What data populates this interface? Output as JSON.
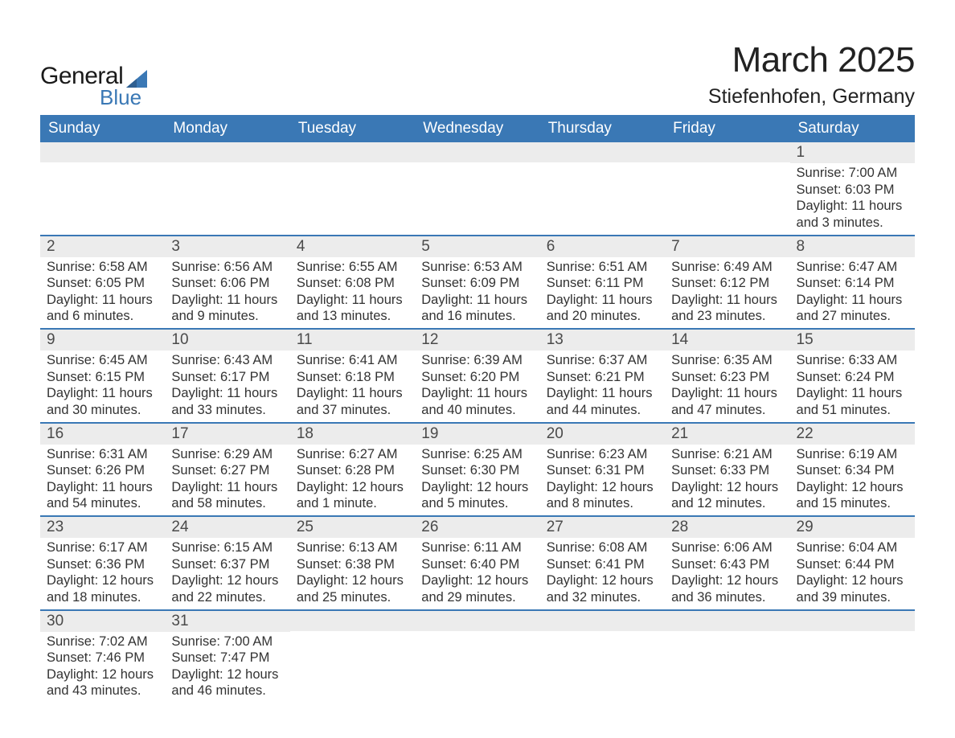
{
  "brand": {
    "word1": "General",
    "word2": "Blue",
    "text_color": "#1a1a1a",
    "accent_color": "#3a78b5"
  },
  "title": {
    "month_year": "March 2025",
    "location": "Stiefenhofen, Germany",
    "title_fontsize": 44,
    "location_fontsize": 25,
    "text_color": "#222222"
  },
  "calendar": {
    "header_bg": "#3a78b5",
    "header_text_color": "#ffffff",
    "row_divider_color": "#3a78b5",
    "daynum_bg": "#ececec",
    "body_text_color": "#333333",
    "body_fontsize": 16.5,
    "daynum_fontsize": 19,
    "days": [
      "Sunday",
      "Monday",
      "Tuesday",
      "Wednesday",
      "Thursday",
      "Friday",
      "Saturday"
    ],
    "weeks": [
      [
        null,
        null,
        null,
        null,
        null,
        null,
        {
          "n": "1",
          "sunrise": "Sunrise: 7:00 AM",
          "sunset": "Sunset: 6:03 PM",
          "daylight": "Daylight: 11 hours and 3 minutes."
        }
      ],
      [
        {
          "n": "2",
          "sunrise": "Sunrise: 6:58 AM",
          "sunset": "Sunset: 6:05 PM",
          "daylight": "Daylight: 11 hours and 6 minutes."
        },
        {
          "n": "3",
          "sunrise": "Sunrise: 6:56 AM",
          "sunset": "Sunset: 6:06 PM",
          "daylight": "Daylight: 11 hours and 9 minutes."
        },
        {
          "n": "4",
          "sunrise": "Sunrise: 6:55 AM",
          "sunset": "Sunset: 6:08 PM",
          "daylight": "Daylight: 11 hours and 13 minutes."
        },
        {
          "n": "5",
          "sunrise": "Sunrise: 6:53 AM",
          "sunset": "Sunset: 6:09 PM",
          "daylight": "Daylight: 11 hours and 16 minutes."
        },
        {
          "n": "6",
          "sunrise": "Sunrise: 6:51 AM",
          "sunset": "Sunset: 6:11 PM",
          "daylight": "Daylight: 11 hours and 20 minutes."
        },
        {
          "n": "7",
          "sunrise": "Sunrise: 6:49 AM",
          "sunset": "Sunset: 6:12 PM",
          "daylight": "Daylight: 11 hours and 23 minutes."
        },
        {
          "n": "8",
          "sunrise": "Sunrise: 6:47 AM",
          "sunset": "Sunset: 6:14 PM",
          "daylight": "Daylight: 11 hours and 27 minutes."
        }
      ],
      [
        {
          "n": "9",
          "sunrise": "Sunrise: 6:45 AM",
          "sunset": "Sunset: 6:15 PM",
          "daylight": "Daylight: 11 hours and 30 minutes."
        },
        {
          "n": "10",
          "sunrise": "Sunrise: 6:43 AM",
          "sunset": "Sunset: 6:17 PM",
          "daylight": "Daylight: 11 hours and 33 minutes."
        },
        {
          "n": "11",
          "sunrise": "Sunrise: 6:41 AM",
          "sunset": "Sunset: 6:18 PM",
          "daylight": "Daylight: 11 hours and 37 minutes."
        },
        {
          "n": "12",
          "sunrise": "Sunrise: 6:39 AM",
          "sunset": "Sunset: 6:20 PM",
          "daylight": "Daylight: 11 hours and 40 minutes."
        },
        {
          "n": "13",
          "sunrise": "Sunrise: 6:37 AM",
          "sunset": "Sunset: 6:21 PM",
          "daylight": "Daylight: 11 hours and 44 minutes."
        },
        {
          "n": "14",
          "sunrise": "Sunrise: 6:35 AM",
          "sunset": "Sunset: 6:23 PM",
          "daylight": "Daylight: 11 hours and 47 minutes."
        },
        {
          "n": "15",
          "sunrise": "Sunrise: 6:33 AM",
          "sunset": "Sunset: 6:24 PM",
          "daylight": "Daylight: 11 hours and 51 minutes."
        }
      ],
      [
        {
          "n": "16",
          "sunrise": "Sunrise: 6:31 AM",
          "sunset": "Sunset: 6:26 PM",
          "daylight": "Daylight: 11 hours and 54 minutes."
        },
        {
          "n": "17",
          "sunrise": "Sunrise: 6:29 AM",
          "sunset": "Sunset: 6:27 PM",
          "daylight": "Daylight: 11 hours and 58 minutes."
        },
        {
          "n": "18",
          "sunrise": "Sunrise: 6:27 AM",
          "sunset": "Sunset: 6:28 PM",
          "daylight": "Daylight: 12 hours and 1 minute."
        },
        {
          "n": "19",
          "sunrise": "Sunrise: 6:25 AM",
          "sunset": "Sunset: 6:30 PM",
          "daylight": "Daylight: 12 hours and 5 minutes."
        },
        {
          "n": "20",
          "sunrise": "Sunrise: 6:23 AM",
          "sunset": "Sunset: 6:31 PM",
          "daylight": "Daylight: 12 hours and 8 minutes."
        },
        {
          "n": "21",
          "sunrise": "Sunrise: 6:21 AM",
          "sunset": "Sunset: 6:33 PM",
          "daylight": "Daylight: 12 hours and 12 minutes."
        },
        {
          "n": "22",
          "sunrise": "Sunrise: 6:19 AM",
          "sunset": "Sunset: 6:34 PM",
          "daylight": "Daylight: 12 hours and 15 minutes."
        }
      ],
      [
        {
          "n": "23",
          "sunrise": "Sunrise: 6:17 AM",
          "sunset": "Sunset: 6:36 PM",
          "daylight": "Daylight: 12 hours and 18 minutes."
        },
        {
          "n": "24",
          "sunrise": "Sunrise: 6:15 AM",
          "sunset": "Sunset: 6:37 PM",
          "daylight": "Daylight: 12 hours and 22 minutes."
        },
        {
          "n": "25",
          "sunrise": "Sunrise: 6:13 AM",
          "sunset": "Sunset: 6:38 PM",
          "daylight": "Daylight: 12 hours and 25 minutes."
        },
        {
          "n": "26",
          "sunrise": "Sunrise: 6:11 AM",
          "sunset": "Sunset: 6:40 PM",
          "daylight": "Daylight: 12 hours and 29 minutes."
        },
        {
          "n": "27",
          "sunrise": "Sunrise: 6:08 AM",
          "sunset": "Sunset: 6:41 PM",
          "daylight": "Daylight: 12 hours and 32 minutes."
        },
        {
          "n": "28",
          "sunrise": "Sunrise: 6:06 AM",
          "sunset": "Sunset: 6:43 PM",
          "daylight": "Daylight: 12 hours and 36 minutes."
        },
        {
          "n": "29",
          "sunrise": "Sunrise: 6:04 AM",
          "sunset": "Sunset: 6:44 PM",
          "daylight": "Daylight: 12 hours and 39 minutes."
        }
      ],
      [
        {
          "n": "30",
          "sunrise": "Sunrise: 7:02 AM",
          "sunset": "Sunset: 7:46 PM",
          "daylight": "Daylight: 12 hours and 43 minutes."
        },
        {
          "n": "31",
          "sunrise": "Sunrise: 7:00 AM",
          "sunset": "Sunset: 7:47 PM",
          "daylight": "Daylight: 12 hours and 46 minutes."
        },
        null,
        null,
        null,
        null,
        null
      ]
    ]
  }
}
